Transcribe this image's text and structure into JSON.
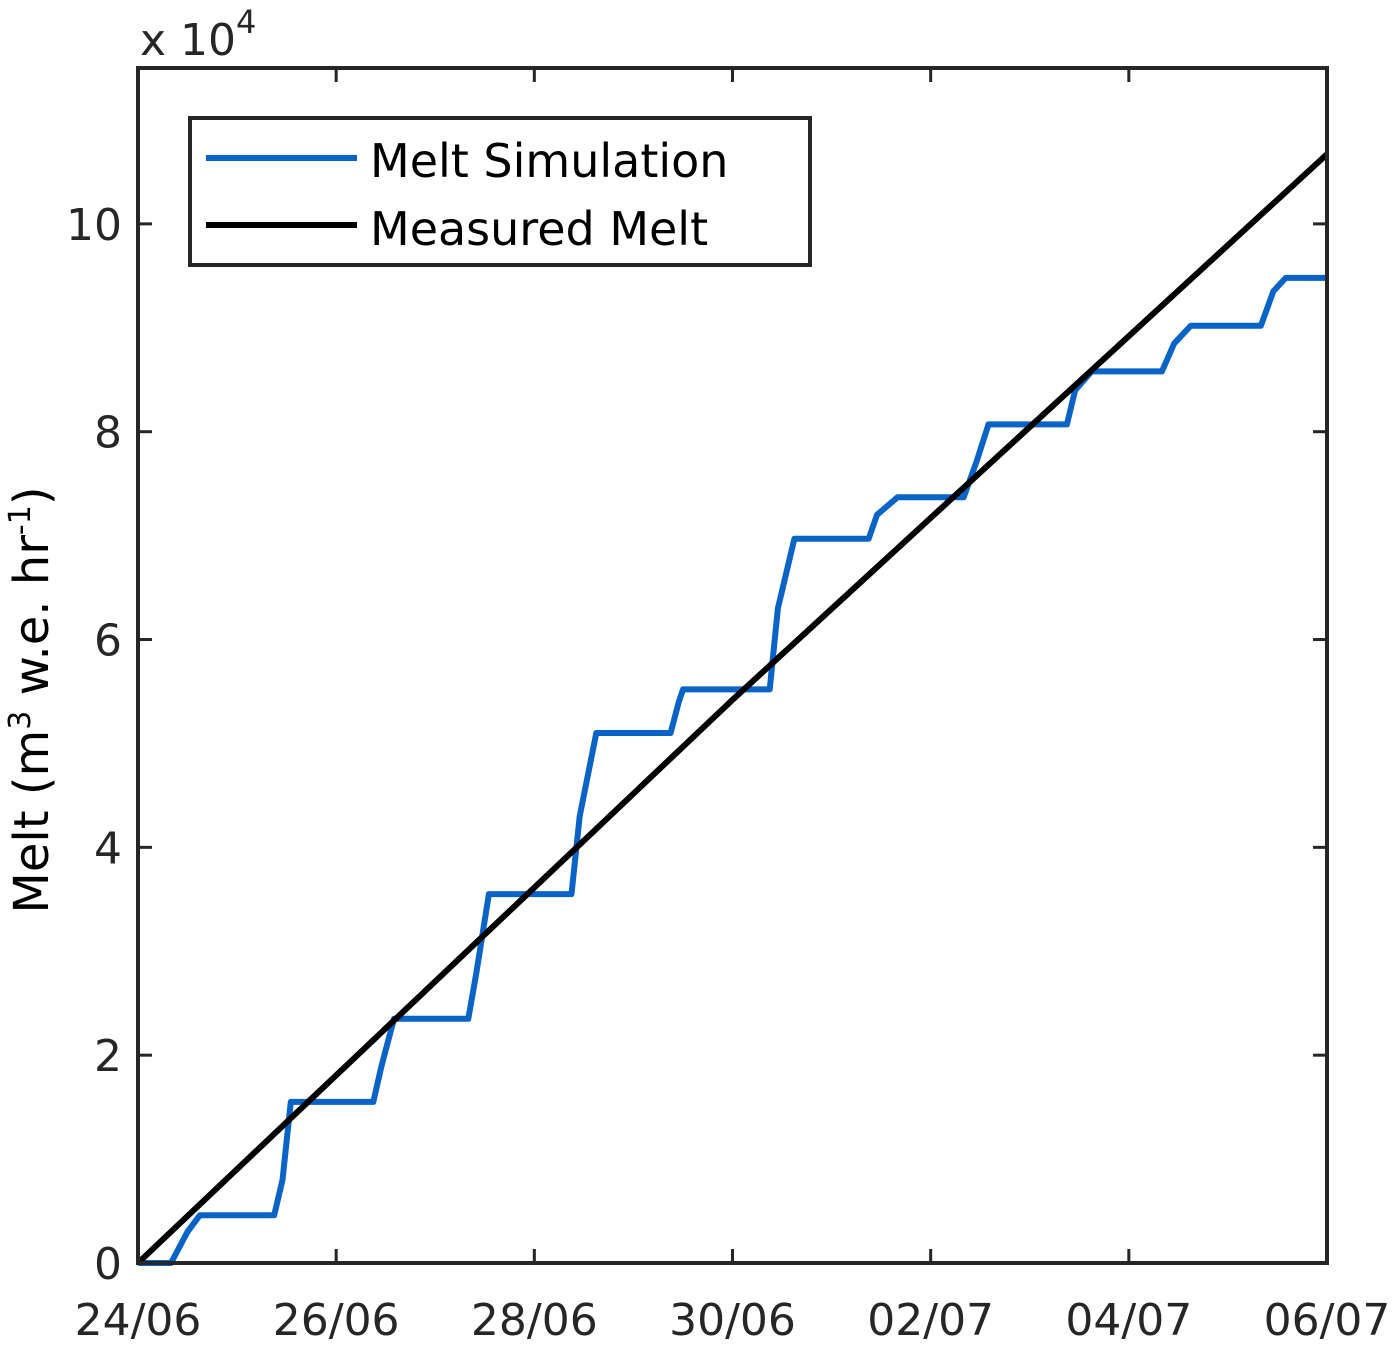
{
  "chart_data": {
    "type": "line",
    "title": "",
    "xlabel": "",
    "ylabel": "Melt (m³ w.e. hr⁻¹)",
    "ylabel_parts": {
      "pre": "Melt (m",
      "sup1": "3",
      "mid": " w.e. hr",
      "sup2": "-1",
      "post": ")"
    },
    "y_multiplier": {
      "base": "x 10",
      "exp": "4"
    },
    "xlim": [
      "24/06 00:00",
      "06/07 00:00"
    ],
    "ylim": [
      0,
      11.5
    ],
    "x_ticks": [
      "24/06",
      "26/06",
      "28/06",
      "30/06",
      "02/07",
      "04/07",
      "06/07"
    ],
    "y_ticks": [
      0,
      2,
      4,
      6,
      8,
      10
    ],
    "grid": false,
    "legend_position": "top-left",
    "series": [
      {
        "name": "Melt Simulation",
        "color": "#0a64c8",
        "points": [
          [
            "24/06 00:00",
            0
          ],
          [
            "24/06 08:00",
            0
          ],
          [
            "24/06 12:00",
            0.3
          ],
          [
            "24/06 15:00",
            0.46
          ],
          [
            "25/06 09:00",
            0.46
          ],
          [
            "25/06 11:00",
            0.8
          ],
          [
            "25/06 13:00",
            1.55
          ],
          [
            "26/06 09:00",
            1.55
          ],
          [
            "26/06 11:00",
            1.9
          ],
          [
            "26/06 14:00",
            2.35
          ],
          [
            "27/06 08:00",
            2.35
          ],
          [
            "27/06 10:00",
            2.8
          ],
          [
            "27/06 13:00",
            3.55
          ],
          [
            "28/06 09:00",
            3.55
          ],
          [
            "28/06 11:00",
            4.3
          ],
          [
            "28/06 15:00",
            5.1
          ],
          [
            "29/06 09:00",
            5.1
          ],
          [
            "29/06 11:00",
            5.4
          ],
          [
            "29/06 12:00",
            5.52
          ],
          [
            "30/06 09:00",
            5.52
          ],
          [
            "30/06 11:00",
            6.3
          ],
          [
            "30/06 15:00",
            6.97
          ],
          [
            "01/07 09:00",
            6.97
          ],
          [
            "01/07 11:00",
            7.2
          ],
          [
            "01/07 16:00",
            7.37
          ],
          [
            "02/07 08:00",
            7.37
          ],
          [
            "02/07 11:00",
            7.7
          ],
          [
            "02/07 14:00",
            8.07
          ],
          [
            "03/07 09:00",
            8.07
          ],
          [
            "03/07 11:00",
            8.4
          ],
          [
            "03/07 15:00",
            8.58
          ],
          [
            "04/07 08:00",
            8.58
          ],
          [
            "04/07 11:00",
            8.85
          ],
          [
            "04/07 15:00",
            9.02
          ],
          [
            "05/07 08:00",
            9.02
          ],
          [
            "05/07 11:00",
            9.35
          ],
          [
            "05/07 14:00",
            9.48
          ],
          [
            "06/07 00:00",
            9.48
          ]
        ]
      },
      {
        "name": "Measured Melt",
        "color": "#000000",
        "points": [
          [
            "24/06 00:00",
            0
          ],
          [
            "30/06 00:00",
            5.42
          ],
          [
            "06/07 00:00",
            10.67
          ]
        ]
      }
    ]
  }
}
